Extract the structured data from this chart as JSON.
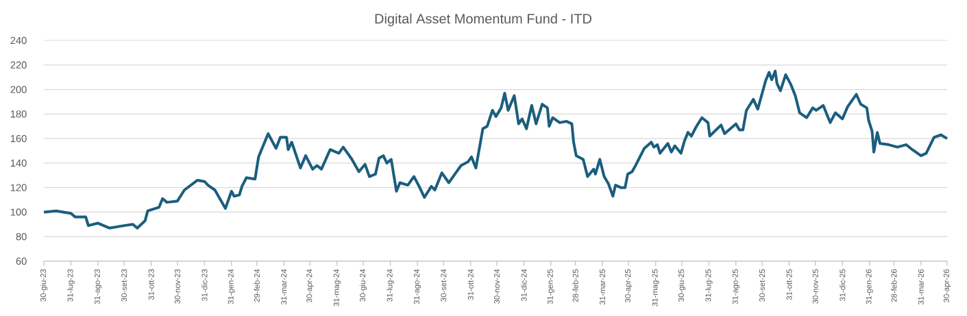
{
  "chart_data": {
    "type": "line",
    "title": "Digital Asset Momentum Fund - ITD",
    "x": [
      "2023-06-30",
      "2023-07-14",
      "2023-07-31",
      "2023-08-05",
      "2023-08-17",
      "2023-08-20",
      "2023-08-31",
      "2023-09-13",
      "2023-09-30",
      "2023-10-10",
      "2023-10-15",
      "2023-10-24",
      "2023-10-27",
      "2023-11-09",
      "2023-11-13",
      "2023-11-18",
      "2023-11-30",
      "2023-12-08",
      "2023-12-23",
      "2023-12-31",
      "2024-01-04",
      "2024-01-12",
      "2024-01-24",
      "2024-01-31",
      "2024-02-03",
      "2024-02-09",
      "2024-02-12",
      "2024-02-17",
      "2024-02-27",
      "2024-03-02",
      "2024-03-13",
      "2024-03-22",
      "2024-03-27",
      "2024-04-03",
      "2024-04-05",
      "2024-04-09",
      "2024-04-19",
      "2024-04-25",
      "2024-05-03",
      "2024-05-08",
      "2024-05-13",
      "2024-05-23",
      "2024-06-02",
      "2024-06-07",
      "2024-06-17",
      "2024-06-25",
      "2024-07-02",
      "2024-07-07",
      "2024-07-14",
      "2024-07-18",
      "2024-07-23",
      "2024-07-27",
      "2024-08-01",
      "2024-08-07",
      "2024-08-11",
      "2024-08-20",
      "2024-08-27",
      "2024-09-02",
      "2024-09-08",
      "2024-09-16",
      "2024-09-20",
      "2024-09-28",
      "2024-10-06",
      "2024-10-14",
      "2024-10-20",
      "2024-10-28",
      "2024-11-01",
      "2024-11-06",
      "2024-11-14",
      "2024-11-19",
      "2024-11-25",
      "2024-11-29",
      "2024-12-05",
      "2024-12-09",
      "2024-12-13",
      "2024-12-20",
      "2024-12-25",
      "2024-12-29",
      "2025-01-03",
      "2025-01-09",
      "2025-01-14",
      "2025-01-21",
      "2025-01-27",
      "2025-01-29",
      "2025-02-02",
      "2025-02-10",
      "2025-02-18",
      "2025-02-24",
      "2025-02-26",
      "2025-03-01",
      "2025-03-09",
      "2025-03-14",
      "2025-03-21",
      "2025-03-23",
      "2025-03-28",
      "2025-04-02",
      "2025-04-07",
      "2025-04-12",
      "2025-04-15",
      "2025-04-21",
      "2025-04-26",
      "2025-04-29",
      "2025-05-04",
      "2025-05-08",
      "2025-05-13",
      "2025-05-18",
      "2025-05-26",
      "2025-05-29",
      "2025-06-02",
      "2025-06-05",
      "2025-06-14",
      "2025-06-18",
      "2025-06-22",
      "2025-06-29",
      "2025-07-03",
      "2025-07-07",
      "2025-07-11",
      "2025-07-16",
      "2025-07-23",
      "2025-07-30",
      "2025-08-01",
      "2025-08-14",
      "2025-08-18",
      "2025-08-31",
      "2025-09-04",
      "2025-09-08",
      "2025-09-12",
      "2025-09-20",
      "2025-09-25",
      "2025-10-04",
      "2025-10-08",
      "2025-10-11",
      "2025-10-15",
      "2025-10-17",
      "2025-10-21",
      "2025-10-27",
      "2025-11-02",
      "2025-11-07",
      "2025-11-12",
      "2025-11-20",
      "2025-11-27",
      "2025-12-01",
      "2025-12-09",
      "2025-12-17",
      "2025-12-23",
      "2025-12-31",
      "2026-01-06",
      "2026-01-16",
      "2026-01-21",
      "2026-01-28",
      "2026-01-30",
      "2026-02-03",
      "2026-02-05",
      "2026-02-09",
      "2026-02-12",
      "2026-02-22",
      "2026-03-04",
      "2026-03-14",
      "2026-03-21",
      "2026-03-31",
      "2026-04-06",
      "2026-04-15",
      "2026-04-23",
      "2026-04-30"
    ],
    "series": [
      {
        "color": "#1b5e7e",
        "values": [
          100,
          101,
          99,
          96,
          96,
          89,
          91,
          87,
          89,
          90,
          87,
          93,
          101,
          104,
          111,
          108,
          109,
          118,
          126,
          125,
          122,
          118,
          103,
          117,
          113,
          114,
          121,
          128,
          127,
          145,
          164,
          152,
          161,
          161,
          151,
          157,
          136,
          146,
          135,
          138,
          135,
          151,
          148,
          153,
          143,
          133,
          139,
          129,
          131,
          144,
          146,
          140,
          143,
          117,
          124,
          122,
          129,
          121,
          112,
          121,
          118,
          132,
          124,
          132,
          138,
          141,
          145,
          136,
          168,
          170,
          183,
          178,
          185,
          197,
          183,
          195,
          172,
          176,
          168,
          187,
          172,
          188,
          185,
          170,
          177,
          173,
          174,
          172,
          157,
          146,
          143,
          129,
          135,
          131,
          143,
          129,
          123,
          113,
          122,
          120,
          120,
          131,
          133,
          138,
          145,
          152,
          157,
          153,
          155,
          148,
          156,
          149,
          154,
          148,
          158,
          165,
          162,
          169,
          177,
          173,
          162,
          171,
          164,
          172,
          167,
          167,
          183,
          192,
          184,
          207,
          214,
          208,
          215,
          205,
          199,
          212,
          204,
          195,
          181,
          177,
          185,
          183,
          187,
          173,
          181,
          176,
          186,
          196,
          188,
          185,
          175,
          166,
          149,
          165,
          156,
          155,
          153,
          155,
          151,
          146,
          148,
          161,
          163,
          160
        ]
      }
    ],
    "xlim": [
      "2023-06-30",
      "2026-04-30"
    ],
    "xticks": [
      {
        "value": "2023-06-30",
        "label": "30-giu-23"
      },
      {
        "value": "2023-07-31",
        "label": "31-lug-23"
      },
      {
        "value": "2023-08-31",
        "label": "31-ago-23"
      },
      {
        "value": "2023-09-30",
        "label": "30-set-23"
      },
      {
        "value": "2023-10-31",
        "label": "31-ott-23"
      },
      {
        "value": "2023-11-30",
        "label": "30-nov-23"
      },
      {
        "value": "2023-12-31",
        "label": "31-dic-23"
      },
      {
        "value": "2024-01-31",
        "label": "31-gen-24"
      },
      {
        "value": "2024-02-29",
        "label": "29-feb-24"
      },
      {
        "value": "2024-03-31",
        "label": "31-mar-24"
      },
      {
        "value": "2024-04-30",
        "label": "30-apr-24"
      },
      {
        "value": "2024-05-31",
        "label": "31-mag-24"
      },
      {
        "value": "2024-06-30",
        "label": "30-giu-24"
      },
      {
        "value": "2024-07-31",
        "label": "31-lug-24"
      },
      {
        "value": "2024-08-31",
        "label": "31-ago-24"
      },
      {
        "value": "2024-09-30",
        "label": "30-set-24"
      },
      {
        "value": "2024-10-31",
        "label": "31-ott-24"
      },
      {
        "value": "2024-11-30",
        "label": "30-nov-24"
      },
      {
        "value": "2024-12-31",
        "label": "31-dic-24"
      },
      {
        "value": "2025-01-31",
        "label": "31-gen-25"
      },
      {
        "value": "2025-02-28",
        "label": "28-feb-25"
      },
      {
        "value": "2025-03-31",
        "label": "31-mar-25"
      },
      {
        "value": "2025-04-30",
        "label": "30-apr-25"
      },
      {
        "value": "2025-05-31",
        "label": "31-mag-25"
      },
      {
        "value": "2025-06-30",
        "label": "30-giu-25"
      },
      {
        "value": "2025-07-31",
        "label": "31-lug-25"
      },
      {
        "value": "2025-08-31",
        "label": "31-ago-25"
      },
      {
        "value": "2025-09-30",
        "label": "30-set-25"
      },
      {
        "value": "2025-10-31",
        "label": "31-ott-25"
      },
      {
        "value": "2025-11-30",
        "label": "30-nov-25"
      },
      {
        "value": "2025-12-31",
        "label": "31-dic-25"
      },
      {
        "value": "2026-01-31",
        "label": "31-gen-26"
      },
      {
        "value": "2026-02-28",
        "label": "28-feb-26"
      },
      {
        "value": "2026-03-31",
        "label": "31-mar-26"
      },
      {
        "value": "2026-04-30",
        "label": "30-apr-26"
      }
    ],
    "ylim": [
      60,
      240
    ],
    "yticks": [
      60,
      80,
      100,
      120,
      140,
      160,
      180,
      200,
      220,
      240
    ],
    "grid": "y"
  }
}
